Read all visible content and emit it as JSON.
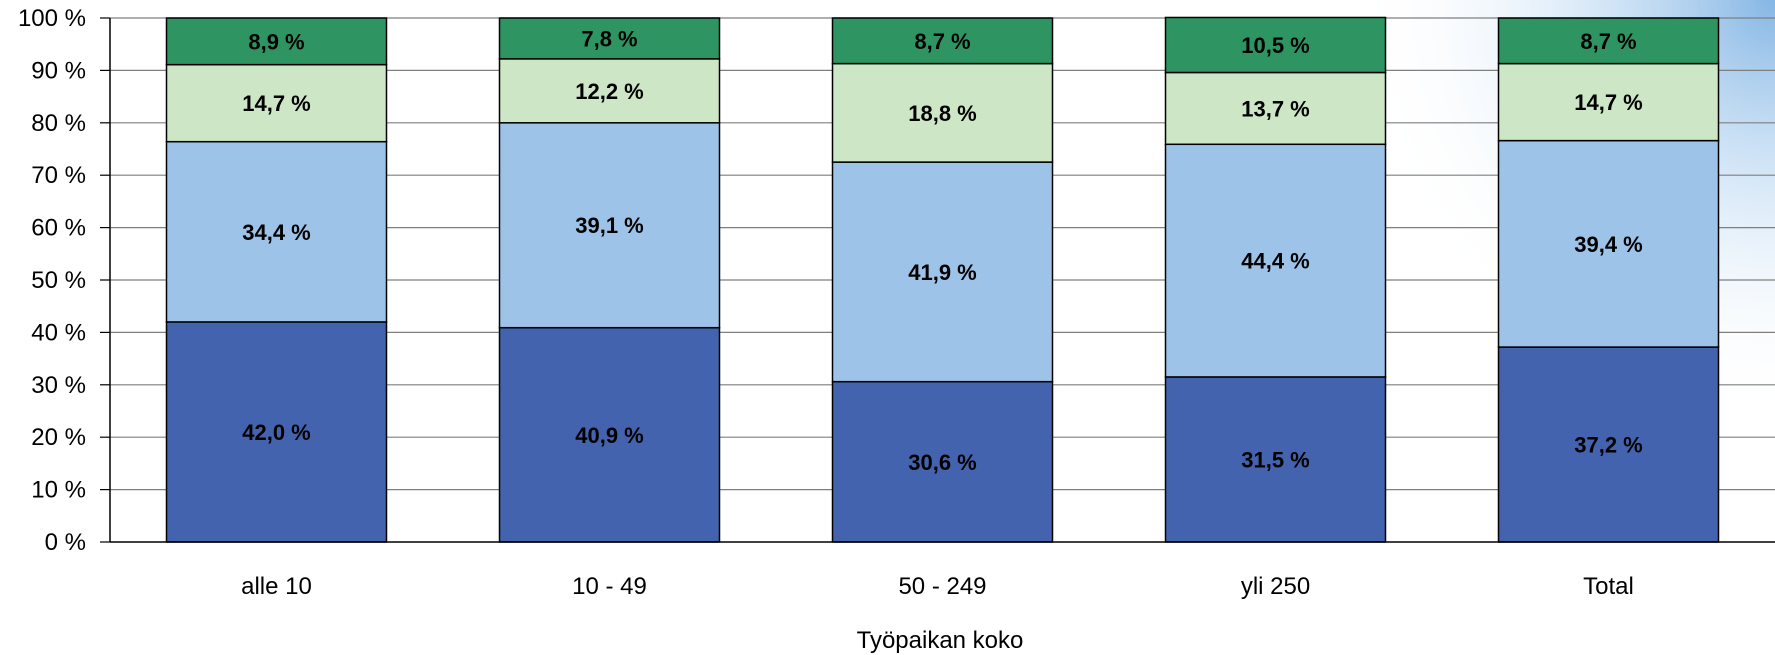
{
  "chart_data": {
    "type": "bar",
    "stacked": true,
    "percent": true,
    "xlabel": "Työpaikan koko",
    "ylabel": "",
    "ylim": [
      0,
      100
    ],
    "yticks": [
      "0 %",
      "10 %",
      "20 %",
      "30 %",
      "40 %",
      "50 %",
      "60 %",
      "70 %",
      "80 %",
      "90 %",
      "100 %"
    ],
    "categories": [
      "alle 10",
      "10 - 49",
      "50 - 249",
      "yli 250",
      "Total"
    ],
    "series": [
      {
        "color": "#4363AE",
        "values": [
          42.0,
          40.9,
          30.6,
          31.5,
          37.2
        ],
        "labels": [
          "42,0 %",
          "40,9 %",
          "30,6 %",
          "31,5 %",
          "37,2 %"
        ]
      },
      {
        "color": "#9EC3E8",
        "values": [
          34.4,
          39.1,
          41.9,
          44.4,
          39.4
        ],
        "labels": [
          "34,4 %",
          "39,1 %",
          "41,9 %",
          "44,4 %",
          "39,4 %"
        ]
      },
      {
        "color": "#CDE6C5",
        "values": [
          14.7,
          12.2,
          18.8,
          13.7,
          14.7
        ],
        "labels": [
          "14,7 %",
          "12,2 %",
          "18,8 %",
          "13,7 %",
          "14,7 %"
        ]
      },
      {
        "color": "#2E9562",
        "values": [
          8.9,
          7.8,
          8.7,
          10.5,
          8.7
        ],
        "labels": [
          "8,9 %",
          "7,8 %",
          "8,7 %",
          "10,5 %",
          "8,7 %"
        ]
      }
    ],
    "grid": true,
    "legend": "none"
  }
}
